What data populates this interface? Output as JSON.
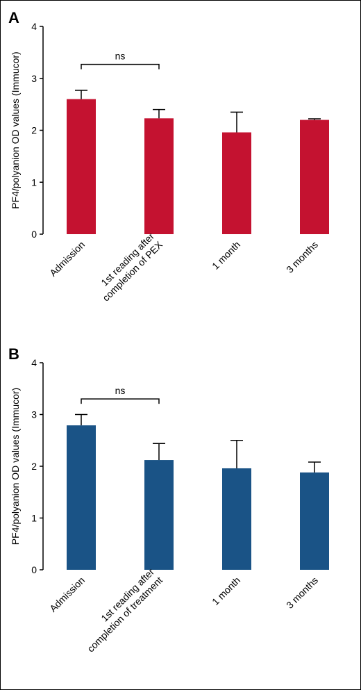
{
  "chart_data": [
    {
      "type": "bar",
      "panel_label": "A",
      "categories": [
        "Admission",
        "1st reading after completion of PEX",
        "1 month",
        "3 months"
      ],
      "category_lines": [
        [
          "Admission"
        ],
        [
          "1st reading after",
          "completion of PEX"
        ],
        [
          "1 month"
        ],
        [
          "3 months"
        ]
      ],
      "values": [
        2.6,
        2.23,
        1.96,
        2.2
      ],
      "error_upper": [
        2.77,
        2.4,
        2.35,
        2.22
      ],
      "ylabel": "PF4/polyanion OD values (Immucor)",
      "ylim": [
        0,
        4
      ],
      "yticks": [
        0,
        1,
        2,
        3,
        4
      ],
      "color": "#c41230",
      "annotation": {
        "text": "ns",
        "from": 0,
        "to": 1,
        "y": 3.27
      },
      "grid": false
    },
    {
      "type": "bar",
      "panel_label": "B",
      "categories": [
        "Admission",
        "1st reading after completion of treatment",
        "1 month",
        "3 months"
      ],
      "category_lines": [
        [
          "Admission"
        ],
        [
          "1st reading after",
          "completion of treatment"
        ],
        [
          "1 month"
        ],
        [
          "3 months"
        ]
      ],
      "values": [
        2.79,
        2.12,
        1.96,
        1.88
      ],
      "error_upper": [
        3.0,
        2.44,
        2.5,
        2.08
      ],
      "ylabel": "PF4/polyanion OD values (Immucor)",
      "ylim": [
        0,
        4
      ],
      "yticks": [
        0,
        1,
        2,
        3,
        4
      ],
      "color": "#1a5386",
      "annotation": {
        "text": "ns",
        "from": 0,
        "to": 1,
        "y": 3.3
      },
      "grid": false
    }
  ]
}
